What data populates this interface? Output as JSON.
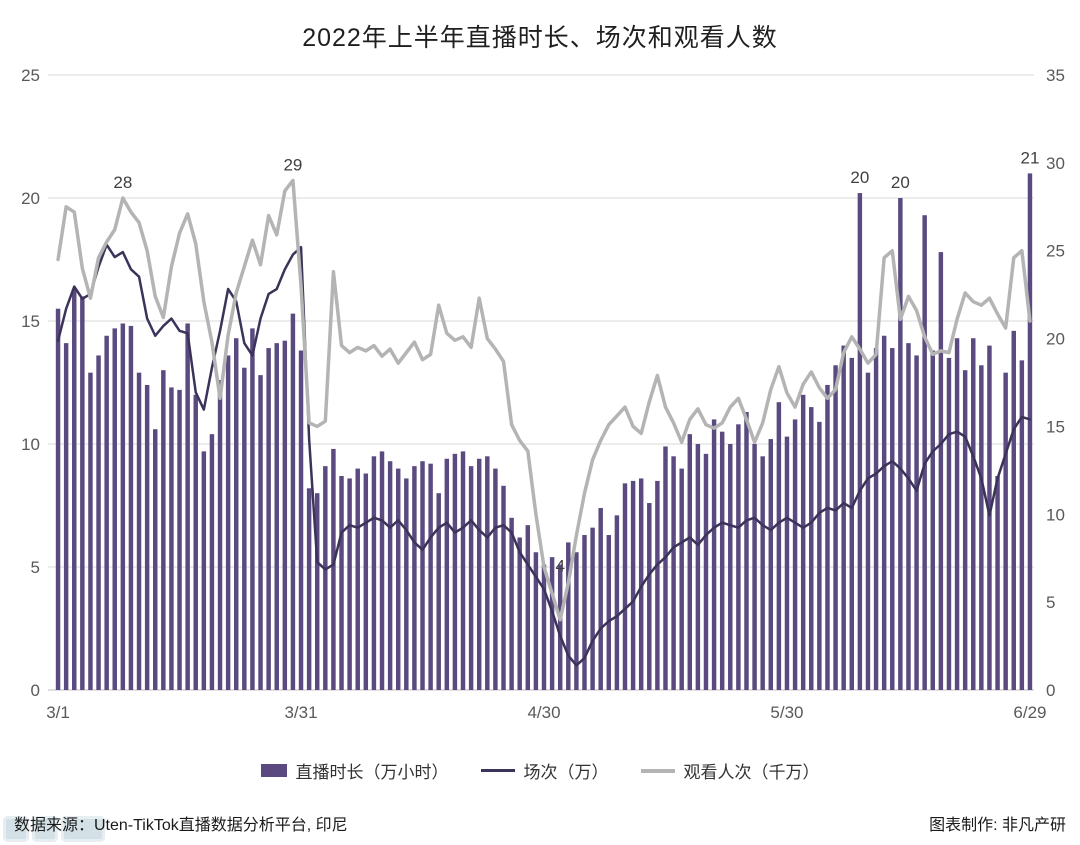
{
  "title": "2022年上半年直播时长、场次和观看人数",
  "footer": {
    "source": "数据来源：Uten-TikTok直播数据分析平台, 印尼",
    "credit": "图表制作: 非凡产研"
  },
  "chart_data": {
    "type": "mixed",
    "x_description": "daily, 3/1 to 6/29 (121 points)",
    "n_points": 121,
    "x_ticks": [
      {
        "index": 0,
        "label": "3/1"
      },
      {
        "index": 30,
        "label": "3/31"
      },
      {
        "index": 60,
        "label": "4/30"
      },
      {
        "index": 90,
        "label": "5/30"
      },
      {
        "index": 120,
        "label": "6/29"
      }
    ],
    "axes": {
      "left": {
        "min": 0,
        "max": 25,
        "ticks": [
          0,
          5,
          10,
          15,
          20,
          25
        ]
      },
      "right": {
        "min": 0,
        "max": 35,
        "ticks": [
          0,
          5,
          10,
          15,
          20,
          25,
          30,
          35
        ]
      }
    },
    "grid": {
      "horizontal": true,
      "color": "#d9d9d9",
      "baseline_color": "#bfbfbf"
    },
    "legend_position": "bottom",
    "series": [
      {
        "name": "直播时长（万小时）",
        "type": "bar",
        "axis": "left",
        "color": "#5a4a7f",
        "values": [
          15.5,
          14.1,
          16.3,
          16.0,
          12.9,
          13.6,
          14.4,
          14.7,
          14.9,
          14.8,
          12.9,
          12.4,
          10.6,
          13.0,
          12.3,
          12.2,
          14.9,
          12.0,
          9.7,
          10.4,
          12.6,
          13.6,
          14.3,
          13.1,
          14.7,
          12.8,
          13.9,
          14.1,
          14.2,
          15.3,
          13.8,
          8.2,
          8.0,
          9.1,
          9.8,
          8.7,
          8.6,
          9.0,
          8.8,
          9.5,
          9.7,
          9.3,
          9.0,
          8.6,
          9.1,
          9.3,
          9.2,
          8.0,
          9.4,
          9.6,
          9.7,
          9.1,
          9.4,
          9.5,
          9.0,
          8.3,
          7.0,
          6.2,
          6.7,
          5.6,
          5.1,
          5.4,
          5.1,
          6.0,
          5.6,
          6.3,
          6.6,
          7.4,
          6.3,
          7.1,
          8.4,
          8.5,
          8.6,
          7.6,
          8.5,
          9.9,
          9.5,
          9.0,
          10.4,
          10.0,
          9.6,
          11.0,
          10.5,
          10.0,
          10.8,
          11.3,
          10.0,
          9.5,
          10.2,
          11.7,
          10.3,
          11.0,
          12.0,
          11.5,
          10.9,
          12.4,
          13.2,
          14.0,
          13.5,
          20.2,
          12.9,
          13.9,
          14.4,
          13.9,
          20.0,
          14.1,
          13.6,
          19.3,
          13.8,
          17.8,
          13.5,
          14.3,
          13.0,
          14.3,
          13.2,
          14.0,
          8.7,
          12.9,
          14.6,
          13.4,
          21.0
        ]
      },
      {
        "name": "场次（万）",
        "type": "line",
        "axis": "left",
        "color": "#3b3359",
        "width": 2.5,
        "values": [
          14.2,
          15.5,
          16.4,
          15.9,
          16.1,
          17.2,
          18.1,
          17.6,
          17.8,
          17.1,
          16.8,
          15.1,
          14.4,
          14.8,
          15.1,
          14.6,
          14.5,
          12.1,
          11.4,
          13.1,
          14.6,
          16.3,
          15.8,
          14.1,
          13.6,
          15.1,
          16.1,
          16.3,
          17.1,
          17.7,
          18.0,
          10.2,
          5.2,
          4.9,
          5.1,
          6.4,
          6.7,
          6.6,
          6.8,
          7.0,
          6.9,
          6.6,
          6.9,
          6.5,
          6.0,
          5.7,
          6.2,
          6.6,
          6.8,
          6.4,
          6.6,
          6.9,
          6.5,
          6.2,
          6.6,
          6.7,
          6.4,
          5.6,
          5.1,
          4.6,
          4.1,
          3.2,
          2.2,
          1.4,
          1.0,
          1.3,
          2.0,
          2.5,
          2.8,
          3.0,
          3.3,
          3.6,
          4.2,
          4.7,
          5.1,
          5.4,
          5.8,
          6.0,
          6.2,
          5.9,
          6.3,
          6.6,
          6.8,
          6.7,
          6.6,
          6.9,
          7.0,
          6.7,
          6.5,
          6.8,
          7.0,
          6.8,
          6.6,
          6.8,
          7.2,
          7.4,
          7.3,
          7.6,
          7.4,
          8.1,
          8.6,
          8.8,
          9.1,
          9.3,
          9.0,
          8.6,
          8.1,
          9.2,
          9.7,
          10.0,
          10.4,
          10.5,
          10.3,
          9.5,
          8.6,
          7.1,
          8.6,
          9.6,
          10.6,
          11.1,
          11.0
        ]
      },
      {
        "name": "观看人次（千万）",
        "type": "line",
        "axis": "right",
        "color": "#b4b4b4",
        "width": 3.5,
        "values": [
          24.5,
          27.5,
          27.2,
          24.0,
          22.3,
          24.6,
          25.5,
          26.2,
          28.0,
          27.2,
          26.6,
          25.0,
          22.4,
          21.2,
          24.1,
          26.0,
          27.1,
          25.4,
          22.1,
          19.8,
          16.6,
          20.2,
          22.6,
          24.1,
          25.6,
          24.2,
          27.0,
          25.9,
          28.4,
          29.0,
          23.0,
          15.2,
          15.0,
          15.3,
          23.8,
          19.6,
          19.2,
          19.5,
          19.3,
          19.6,
          19.0,
          19.4,
          18.6,
          19.2,
          19.8,
          18.8,
          19.1,
          21.9,
          20.3,
          19.9,
          20.1,
          19.5,
          22.3,
          20.0,
          19.4,
          18.7,
          15.1,
          14.2,
          13.6,
          10.0,
          7.0,
          5.5,
          4.0,
          6.1,
          8.8,
          11.2,
          13.1,
          14.2,
          15.1,
          15.6,
          16.1,
          15.0,
          14.6,
          16.4,
          17.9,
          16.1,
          15.2,
          14.1,
          15.4,
          16.0,
          15.1,
          14.9,
          15.2,
          16.1,
          16.6,
          15.4,
          14.1,
          15.2,
          17.1,
          18.4,
          16.9,
          16.1,
          17.4,
          18.1,
          17.2,
          16.6,
          17.1,
          19.2,
          20.1,
          19.4,
          18.6,
          19.1,
          24.6,
          25.0,
          21.1,
          22.4,
          21.6,
          20.1,
          19.1,
          19.3,
          19.2,
          21.1,
          22.6,
          22.1,
          21.9,
          22.3,
          21.4,
          20.6,
          24.6,
          25.0,
          21.0
        ]
      }
    ],
    "annotations": [
      {
        "series": 2,
        "index": 8,
        "label": "28",
        "dy": -10
      },
      {
        "series": 2,
        "index": 29,
        "label": "29",
        "dy": -10
      },
      {
        "series": 2,
        "index": 62,
        "label": "4",
        "dy": -48
      },
      {
        "series": 0,
        "index": 99,
        "label": "20",
        "dy": -10
      },
      {
        "series": 0,
        "index": 104,
        "label": "20",
        "dy": -10
      },
      {
        "series": 0,
        "index": 120,
        "label": "21",
        "dy": -10
      }
    ]
  }
}
